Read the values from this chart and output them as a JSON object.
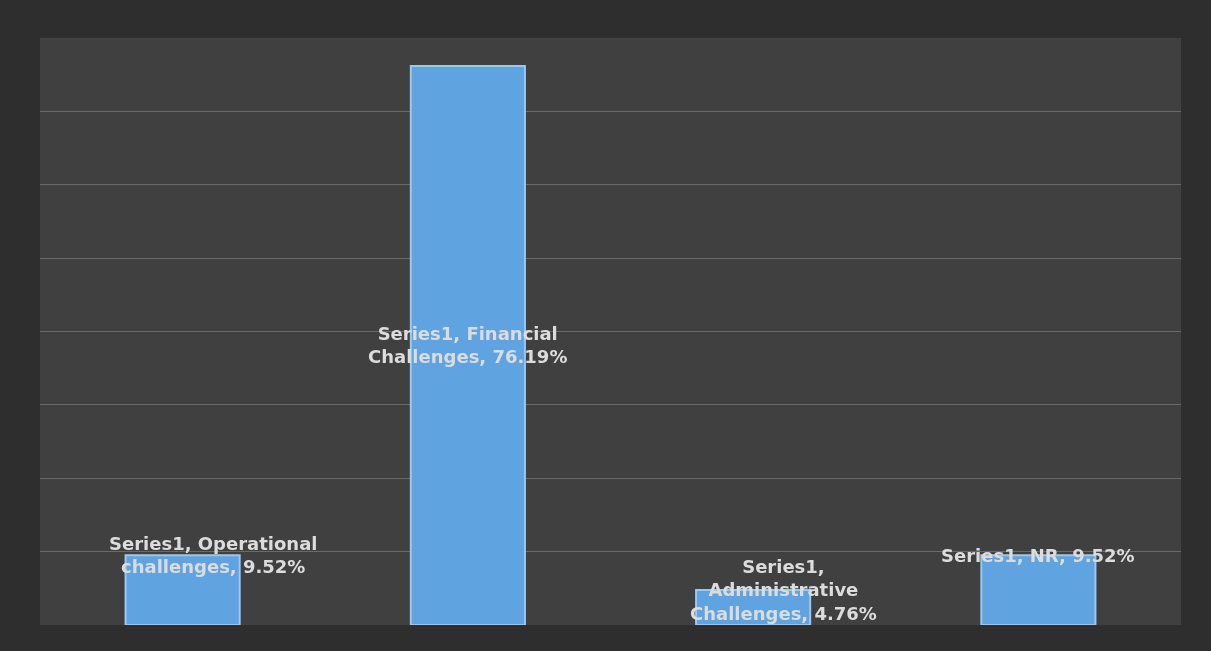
{
  "chart_data": {
    "type": "bar",
    "categories": [
      null,
      null,
      null,
      null
    ],
    "values": [
      9.52,
      76.19,
      4.76,
      9.52
    ],
    "value_labels": [
      "Series1, Operational challenges, 9.52%",
      "Series1, Financial Challenges, 76.19%",
      "Series1, Administrative Challenges, 4.76%",
      "Series1, NR, 9.52%"
    ],
    "color": "#5fa3e0",
    "ylim": [
      0,
      80
    ],
    "yticks": [
      {
        "value": 0,
        "label": null
      },
      {
        "value": 10,
        "label": null
      },
      {
        "value": 20,
        "label": null
      },
      {
        "value": 30,
        "label": null
      },
      {
        "value": 40,
        "label": null
      },
      {
        "value": 50,
        "label": null
      },
      {
        "value": 60,
        "label": null
      },
      {
        "value": 70,
        "label": null
      },
      {
        "value": 80,
        "label": null
      }
    ],
    "grid": "y"
  }
}
